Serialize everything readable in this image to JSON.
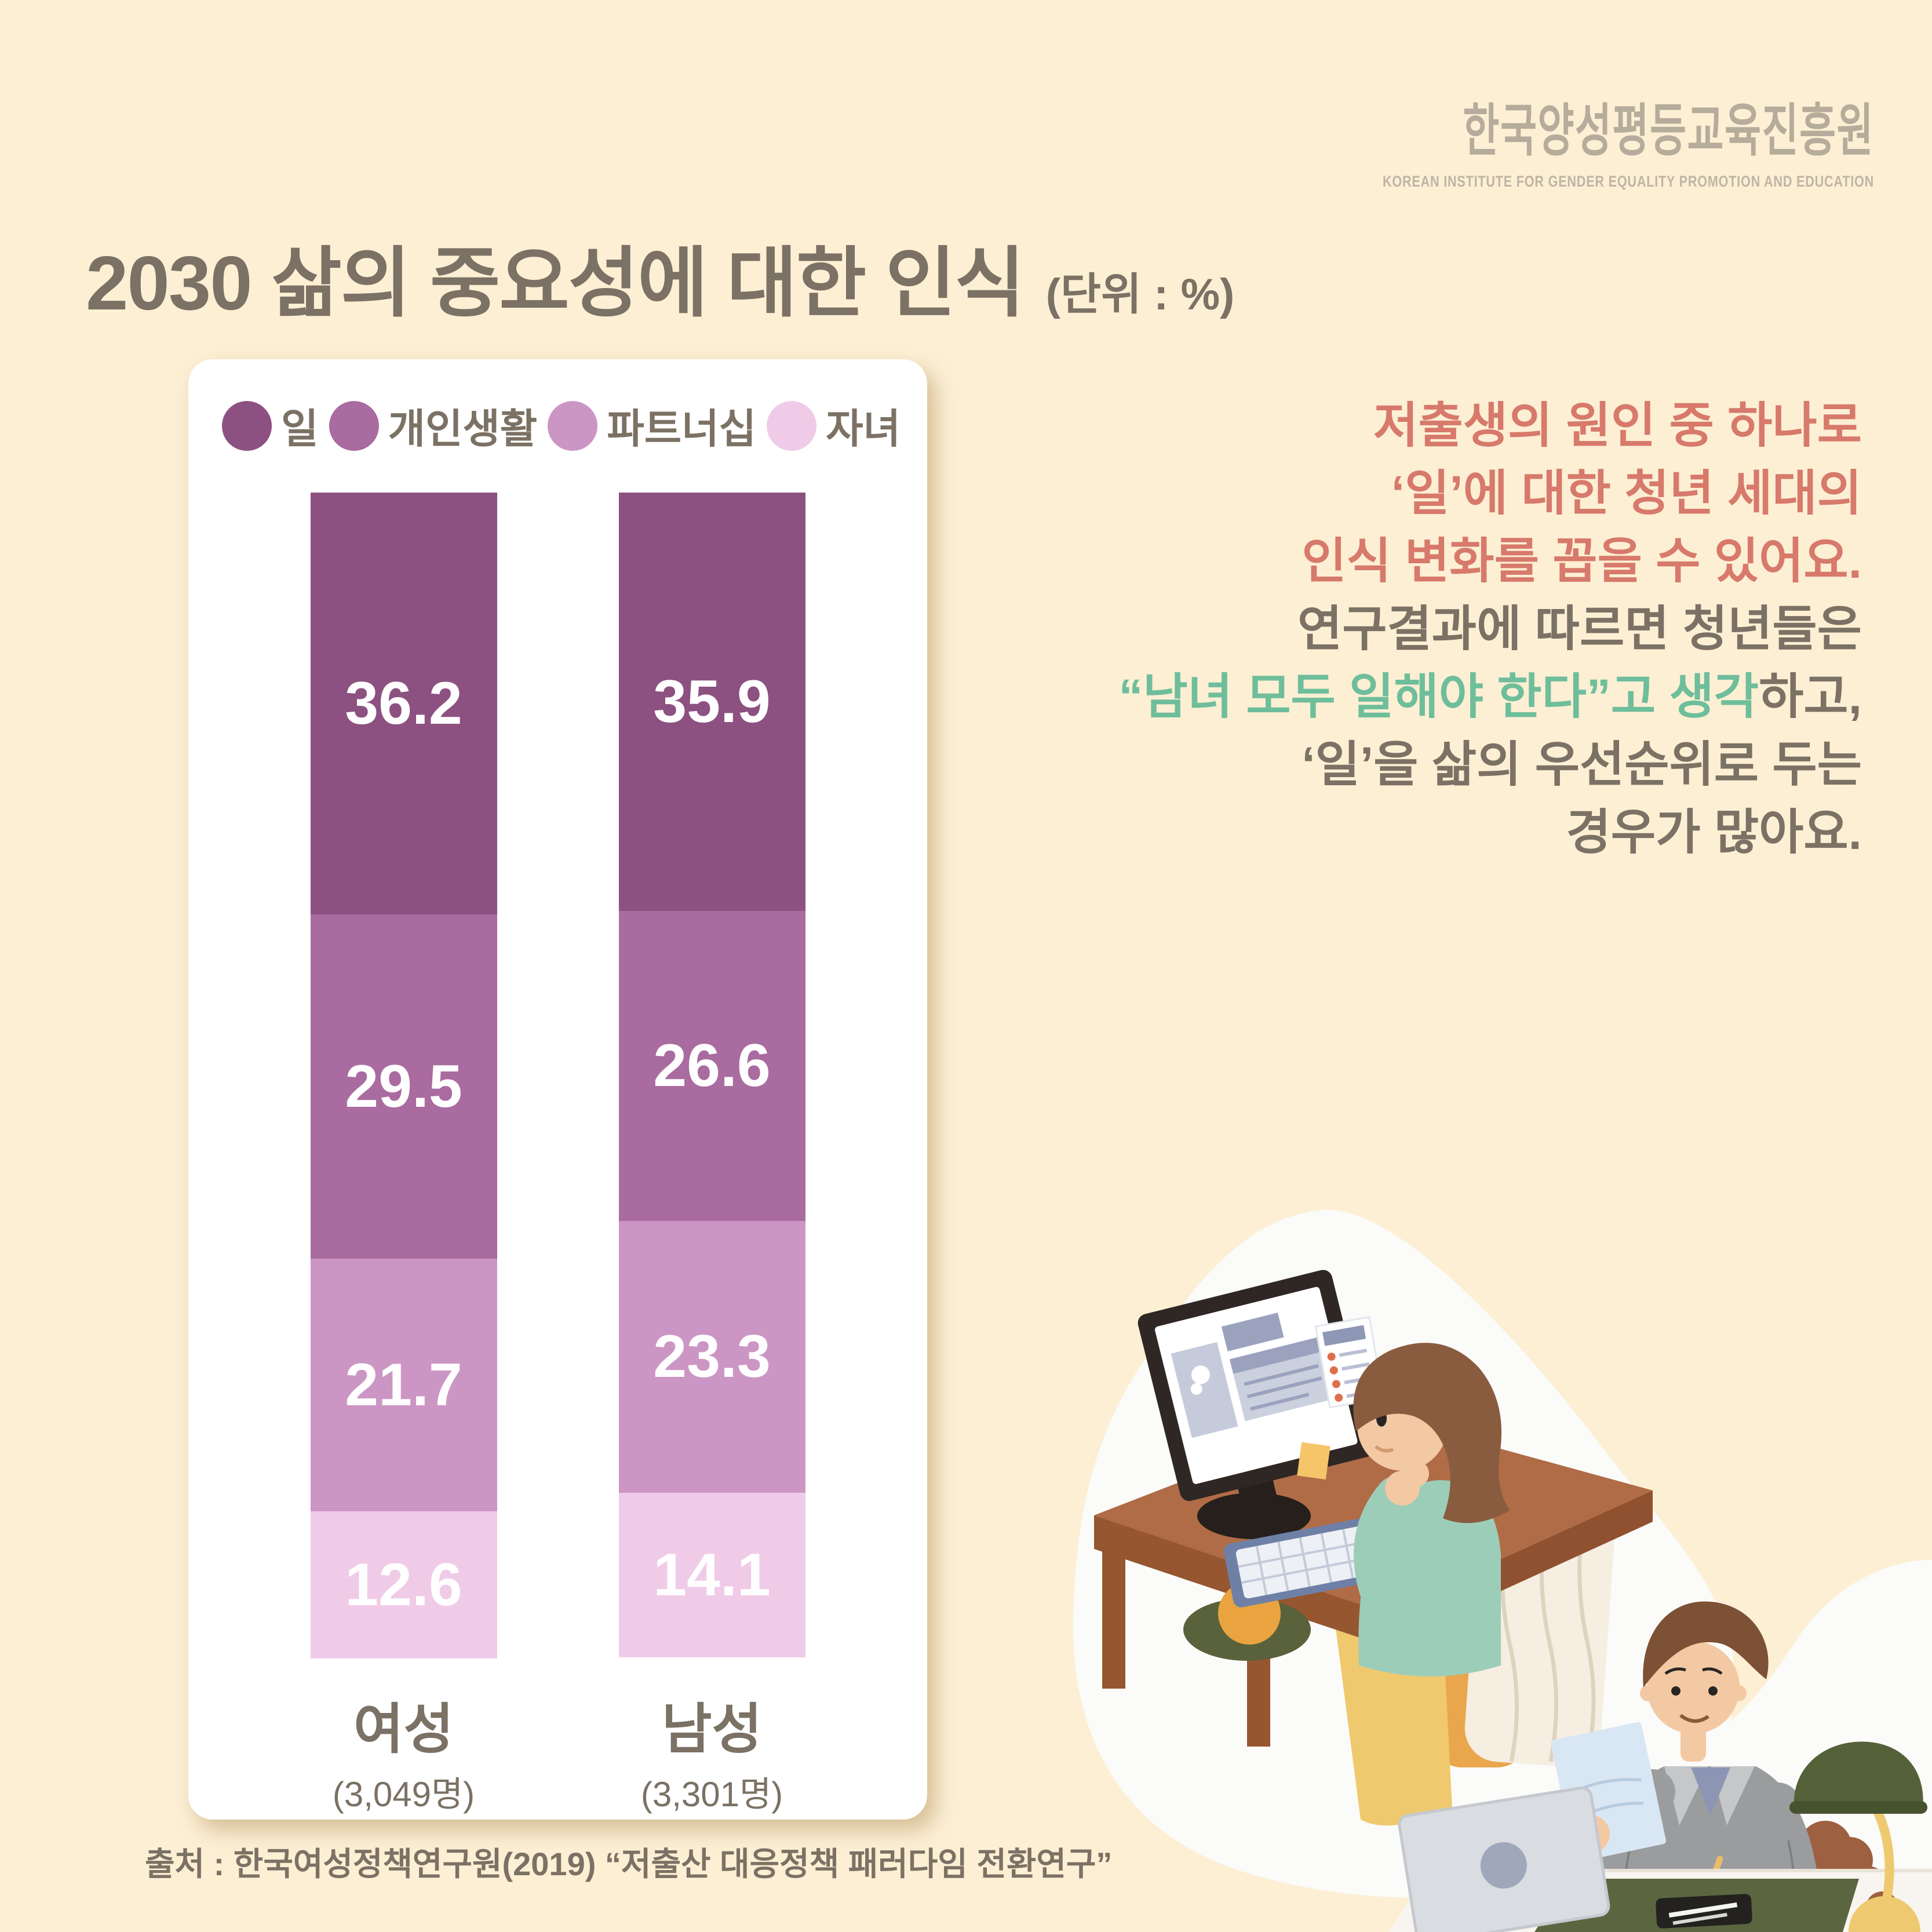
{
  "logo": {
    "korean": "한국양성평등교육진흥원",
    "english": "KOREAN INSTITUTE FOR GENDER EQUALITY PROMOTION AND EDUCATION",
    "color": "#B6AC9B"
  },
  "title": {
    "main": "2030 삶의 중요성에 대한 인식",
    "unit": "(단위 : %)"
  },
  "chart_data": {
    "type": "bar",
    "stacked": true,
    "unit": "%",
    "grid": false,
    "legend_position": "top",
    "ylim": [
      0,
      100
    ],
    "categories": [
      "여성",
      "남성"
    ],
    "category_counts": [
      "(3,049명)",
      "(3,301명)"
    ],
    "series": [
      {
        "name": "일",
        "color": "#8C5181",
        "values": [
          36.2,
          35.9
        ]
      },
      {
        "name": "개인생활",
        "color": "#A96BA0",
        "values": [
          29.5,
          26.6
        ]
      },
      {
        "name": "파트너십",
        "color": "#CC96C4",
        "values": [
          21.7,
          23.3
        ]
      },
      {
        "name": "자녀",
        "color": "#F0CBE8",
        "values": [
          12.6,
          14.1
        ]
      }
    ],
    "value_label_color": "#FFFFFF"
  },
  "commentary": {
    "red_paragraph": {
      "color": "#D7796B",
      "lines": [
        "저출생의 원인 중 하나로",
        "‘일’에 대한 청년 세대의",
        "인식 변화를 꼽을 수 있어요."
      ]
    },
    "body_paragraph": {
      "gray_color": "#7B7164",
      "green_color": "#6FBE9B",
      "line1": "연구결과에 따르면 청년들은",
      "line2_highlight": "“남녀 모두 일해야 한다”고 생각",
      "line2_rest": "하고,",
      "line3": "‘일’을 삶의 우선순위로 두는",
      "line4": "경우가 많아요."
    }
  },
  "source": "출처 : 한국여성정책연구원(2019) “저출산 대응정책 패러다임 전환연구”",
  "illustrations": {
    "woman_scene": "woman-looking-at-monitor-illustration",
    "man_scene": "man-writing-at-desk-with-dog-illustration"
  }
}
